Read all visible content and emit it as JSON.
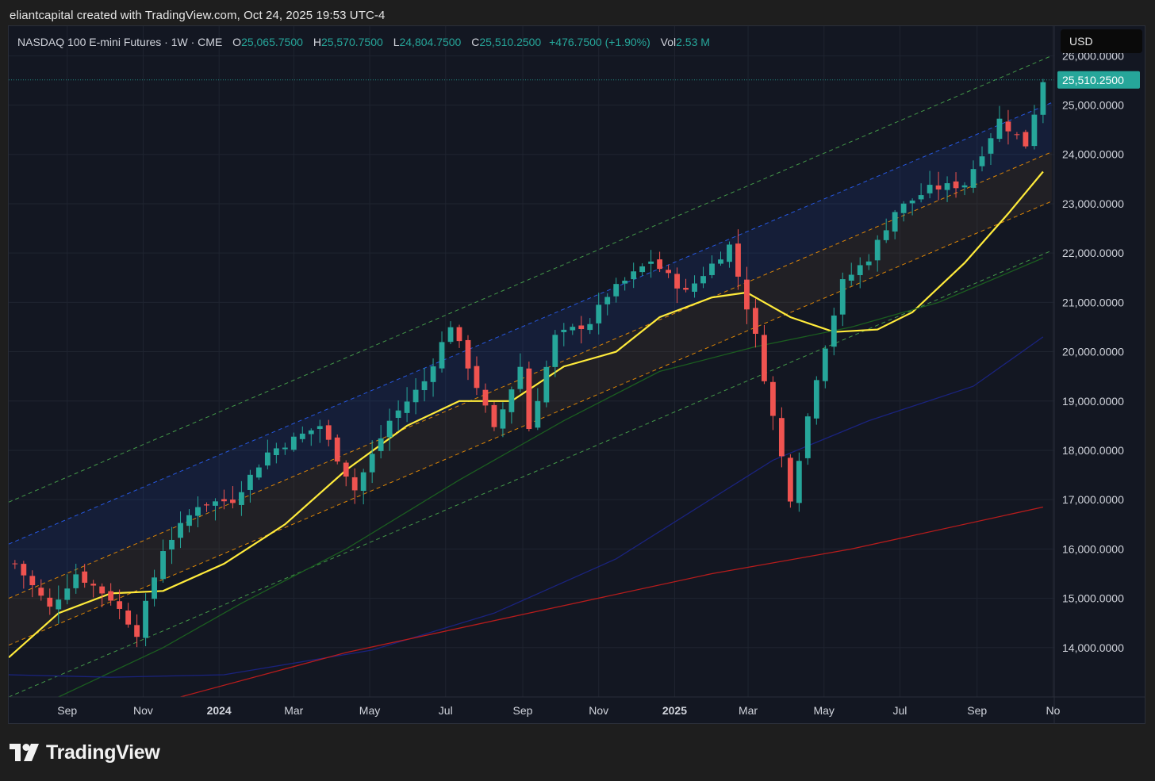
{
  "header": {
    "caption": "eliantcapital created with TradingView.com, Oct 24, 2025 19:53 UTC-4"
  },
  "legend": {
    "symbol": "NASDAQ 100 E-mini Futures · 1W · CME",
    "open_label": "O",
    "open": "25,065.7500",
    "high_label": "H",
    "high": "25,570.7500",
    "low_label": "L",
    "low": "24,804.7500",
    "close_label": "C",
    "close": "25,510.2500",
    "change": "+476.7500 (+1.90%)",
    "volume_label": "Vol",
    "volume": "2.53 M"
  },
  "currency_button": "USD",
  "logo_text": "TradingView",
  "colors": {
    "background": "#131722",
    "up": "#26a69a",
    "down": "#ef5350",
    "ma_yellow": "#ffeb3b",
    "ma_green": "#1b5e20",
    "ma_blue": "#1a237e",
    "ma_red": "#b71c1c",
    "channel_green": "#4caf50",
    "channel_blue": "#2962ff",
    "channel_orange": "#ff9800",
    "last_price_tag": "#26a69a"
  },
  "chart_data": {
    "type": "candlestick",
    "instrument": "NASDAQ 100 E-mini Futures",
    "timeframe": "1W",
    "exchange": "CME",
    "ylim": [
      13000,
      26600
    ],
    "y_ticks": [
      14000,
      15000,
      16000,
      17000,
      18000,
      19000,
      20000,
      21000,
      22000,
      23000,
      24000,
      25000,
      26000
    ],
    "y_tick_labels": [
      "14,000.0000",
      "15,000.0000",
      "16,000.0000",
      "17,000.0000",
      "18,000.0000",
      "19,000.0000",
      "20,000.0000",
      "21,000.0000",
      "22,000.0000",
      "23,000.0000",
      "24,000.0000",
      "25,000.0000",
      "26,000.0000"
    ],
    "x_range": [
      "2023-07-16",
      "2025-11-02"
    ],
    "x_ticks": [
      {
        "date": "2023-09-01",
        "label": "Sep",
        "bold": false
      },
      {
        "date": "2023-11-01",
        "label": "Nov",
        "bold": false
      },
      {
        "date": "2024-01-01",
        "label": "2024",
        "bold": true
      },
      {
        "date": "2024-03-01",
        "label": "Mar",
        "bold": false
      },
      {
        "date": "2024-05-01",
        "label": "May",
        "bold": false
      },
      {
        "date": "2024-07-01",
        "label": "Jul",
        "bold": false
      },
      {
        "date": "2024-09-01",
        "label": "Sep",
        "bold": false
      },
      {
        "date": "2024-11-01",
        "label": "Nov",
        "bold": false
      },
      {
        "date": "2025-01-01",
        "label": "2025",
        "bold": true
      },
      {
        "date": "2025-03-01",
        "label": "Mar",
        "bold": false
      },
      {
        "date": "2025-05-01",
        "label": "May",
        "bold": false
      },
      {
        "date": "2025-07-01",
        "label": "Jul",
        "bold": false
      },
      {
        "date": "2025-09-01",
        "label": "Sep",
        "bold": false
      },
      {
        "date": "2025-11-01",
        "label": "No",
        "bold": false
      }
    ],
    "last_price": 25510.25,
    "last_price_label": "25,510.2500",
    "close_anchors": [
      {
        "date": "2023-07-21",
        "close": 15700
      },
      {
        "date": "2023-08-18",
        "close": 14800
      },
      {
        "date": "2023-09-08",
        "close": 15500
      },
      {
        "date": "2023-10-06",
        "close": 15000
      },
      {
        "date": "2023-10-27",
        "close": 14300
      },
      {
        "date": "2023-11-17",
        "close": 16000
      },
      {
        "date": "2023-12-15",
        "close": 16900
      },
      {
        "date": "2024-01-12",
        "close": 17000
      },
      {
        "date": "2024-02-09",
        "close": 17950
      },
      {
        "date": "2024-03-22",
        "close": 18500
      },
      {
        "date": "2024-04-19",
        "close": 17200
      },
      {
        "date": "2024-05-17",
        "close": 18600
      },
      {
        "date": "2024-06-14",
        "close": 19400
      },
      {
        "date": "2024-07-05",
        "close": 20550
      },
      {
        "date": "2024-07-26",
        "close": 19300
      },
      {
        "date": "2024-08-09",
        "close": 18400
      },
      {
        "date": "2024-08-30",
        "close": 19700
      },
      {
        "date": "2024-09-06",
        "close": 18450
      },
      {
        "date": "2024-09-27",
        "close": 20300
      },
      {
        "date": "2024-10-25",
        "close": 20600
      },
      {
        "date": "2024-11-08",
        "close": 21150
      },
      {
        "date": "2024-12-13",
        "close": 21850
      },
      {
        "date": "2025-01-10",
        "close": 21200
      },
      {
        "date": "2025-02-14",
        "close": 22150
      },
      {
        "date": "2025-03-07",
        "close": 20300
      },
      {
        "date": "2025-04-04",
        "close": 17050
      },
      {
        "date": "2025-04-25",
        "close": 19500
      },
      {
        "date": "2025-05-16",
        "close": 21400
      },
      {
        "date": "2025-06-06",
        "close": 21900
      },
      {
        "date": "2025-06-27",
        "close": 22850
      },
      {
        "date": "2025-07-25",
        "close": 23300
      },
      {
        "date": "2025-08-22",
        "close": 23400
      },
      {
        "date": "2025-09-19",
        "close": 24700
      },
      {
        "date": "2025-10-10",
        "close": 24200
      },
      {
        "date": "2025-10-24",
        "close": 25510
      }
    ],
    "moving_averages": [
      {
        "color": "#ffeb3b",
        "points": [
          [
            "2023-07-16",
            13800
          ],
          [
            "2023-08-25",
            14700
          ],
          [
            "2023-10-06",
            15100
          ],
          [
            "2023-11-17",
            15150
          ],
          [
            "2024-01-05",
            15700
          ],
          [
            "2024-02-23",
            16500
          ],
          [
            "2024-04-12",
            17600
          ],
          [
            "2024-05-31",
            18500
          ],
          [
            "2024-07-12",
            19000
          ],
          [
            "2024-08-23",
            19000
          ],
          [
            "2024-10-04",
            19700
          ],
          [
            "2024-11-15",
            20000
          ],
          [
            "2024-12-20",
            20700
          ],
          [
            "2025-01-31",
            21100
          ],
          [
            "2025-02-28",
            21200
          ],
          [
            "2025-04-04",
            20700
          ],
          [
            "2025-05-09",
            20400
          ],
          [
            "2025-06-13",
            20450
          ],
          [
            "2025-07-11",
            20800
          ],
          [
            "2025-08-22",
            21800
          ],
          [
            "2025-09-26",
            22800
          ],
          [
            "2025-10-24",
            23650
          ]
        ]
      },
      {
        "color": "#1b5e20",
        "points": [
          [
            "2023-08-25",
            13000
          ],
          [
            "2023-11-17",
            14000
          ],
          [
            "2024-01-19",
            14900
          ],
          [
            "2024-04-12",
            16000
          ],
          [
            "2024-07-12",
            17400
          ],
          [
            "2024-10-04",
            18600
          ],
          [
            "2024-12-20",
            19600
          ],
          [
            "2025-03-07",
            20100
          ],
          [
            "2025-05-23",
            20500
          ],
          [
            "2025-08-01",
            21000
          ],
          [
            "2025-10-24",
            21900
          ]
        ]
      },
      {
        "color": "#1a237e",
        "points": [
          [
            "2023-07-16",
            13450
          ],
          [
            "2023-10-06",
            13400
          ],
          [
            "2024-01-05",
            13450
          ],
          [
            "2024-05-03",
            13950
          ],
          [
            "2024-08-09",
            14700
          ],
          [
            "2024-11-15",
            15800
          ],
          [
            "2025-03-21",
            17800
          ],
          [
            "2025-06-06",
            18600
          ],
          [
            "2025-08-29",
            19300
          ],
          [
            "2025-10-24",
            20300
          ]
        ]
      },
      {
        "color": "#b71c1c",
        "points": [
          [
            "2023-12-01",
            13000
          ],
          [
            "2024-04-12",
            13900
          ],
          [
            "2024-09-06",
            14700
          ],
          [
            "2025-01-31",
            15500
          ],
          [
            "2025-05-23",
            16000
          ],
          [
            "2025-10-24",
            16850
          ]
        ]
      }
    ],
    "channel_lines": [
      {
        "color": "#4caf50",
        "dash": true,
        "points": [
          [
            "2023-07-16",
            16950
          ],
          [
            "2025-10-31",
            26000
          ]
        ]
      },
      {
        "color": "#2962ff",
        "dash": true,
        "points": [
          [
            "2023-07-16",
            16100
          ],
          [
            "2025-10-31",
            25050
          ]
        ]
      },
      {
        "color": "#ff9800",
        "dash": true,
        "points": [
          [
            "2023-07-16",
            15000
          ],
          [
            "2025-10-31",
            24050
          ]
        ]
      },
      {
        "color": "#ff9800",
        "dash": true,
        "points": [
          [
            "2023-07-16",
            14050
          ],
          [
            "2025-10-31",
            23050
          ]
        ]
      },
      {
        "color": "#4caf50",
        "dash": true,
        "points": [
          [
            "2023-07-16",
            13000
          ],
          [
            "2025-10-31",
            22050
          ]
        ]
      }
    ]
  }
}
